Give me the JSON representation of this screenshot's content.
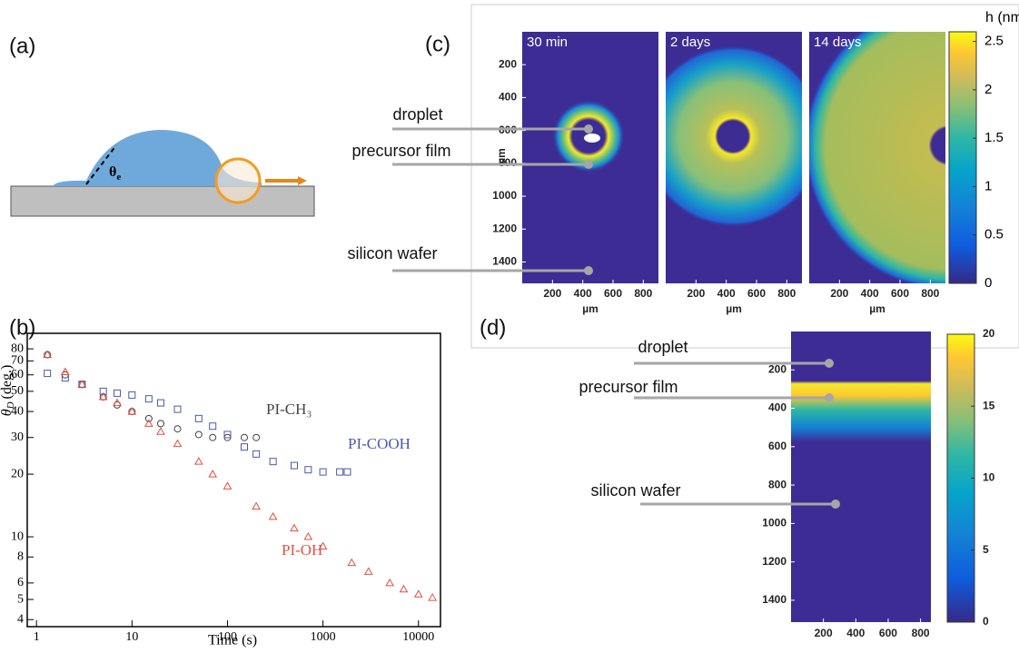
{
  "panel_labels": [
    "(a)",
    "(b)",
    "(c)",
    "(d)"
  ],
  "panel_a": {
    "angle_label": "θ",
    "angle_subscript": "e"
  },
  "panel_b": {
    "type": "line",
    "x_label": "Time (s)",
    "y_label": "θ",
    "y_label_subscript": "D",
    "y_label_unit": "(deg.)",
    "xscale": "log",
    "yscale": "log",
    "xlim": [
      0.8,
      17000
    ],
    "ylim": [
      3.7,
      95
    ],
    "xticks": [
      1,
      10,
      100,
      1000,
      10000
    ],
    "yticks": [
      4,
      5,
      6,
      8,
      10,
      20,
      30,
      40,
      50,
      60,
      70,
      80
    ],
    "series": [
      {
        "name": "PI-CH₃",
        "color": "#444444",
        "marker": "circle",
        "x": [
          1.3,
          2,
          3,
          5,
          7,
          10,
          15,
          20,
          30,
          50,
          70,
          100,
          150,
          200
        ],
        "values": [
          75,
          60,
          54,
          47,
          43,
          40,
          37,
          35,
          33,
          31,
          30,
          30,
          30,
          30
        ]
      },
      {
        "name": "PI-COOH",
        "color": "#4a5aa8",
        "marker": "square",
        "x": [
          1.3,
          2,
          3,
          5,
          7,
          10,
          15,
          20,
          30,
          50,
          70,
          100,
          150,
          200,
          300,
          500,
          700,
          1000,
          1500,
          1800
        ],
        "values": [
          61,
          58,
          54,
          50,
          49,
          48,
          46,
          44,
          41,
          37,
          34,
          31,
          27,
          25,
          23,
          22,
          21,
          20.5,
          20.5,
          20.5
        ]
      },
      {
        "name": "PI-OH",
        "color": "#e0503f",
        "marker": "triangle",
        "x": [
          1.3,
          2,
          3,
          5,
          7,
          10,
          15,
          20,
          30,
          50,
          70,
          100,
          200,
          300,
          500,
          700,
          1000,
          2000,
          3000,
          5000,
          7000,
          10000,
          14000
        ],
        "values": [
          75,
          62,
          54,
          47,
          44,
          40,
          35,
          32,
          28,
          23,
          20,
          17.5,
          14,
          12.5,
          11,
          10,
          9,
          7.5,
          6.8,
          6,
          5.6,
          5.3,
          5.1
        ]
      }
    ]
  },
  "panel_c": {
    "times": [
      "30 min",
      "2 days",
      "14 days"
    ],
    "xlim": [
      0,
      900
    ],
    "ylim": [
      0,
      1530
    ],
    "xticks": [
      200,
      400,
      600,
      800
    ],
    "yticks": [
      200,
      400,
      600,
      800,
      1000,
      1200,
      1400
    ],
    "x_label": "µm",
    "y_label": "µm",
    "colorbar_label": "h (nm)",
    "colorbar_lim": [
      0,
      2.6
    ],
    "colorbar_ticks": [
      0,
      0.5,
      1,
      1.5,
      2,
      2.5
    ],
    "annotations": [
      "droplet",
      "precursor film",
      "silicon wafer"
    ]
  },
  "panel_d": {
    "xlim": [
      0,
      864
    ],
    "ylim": [
      0,
      1514
    ],
    "xticks": [
      200,
      400,
      600,
      800
    ],
    "yticks": [
      200,
      400,
      600,
      800,
      1000,
      1200,
      1400
    ],
    "colorbar_lim": [
      0,
      20
    ],
    "colorbar_ticks": [
      0,
      5,
      10,
      15,
      20
    ],
    "annotations": [
      "droplet",
      "precursor film",
      "silicon wafer"
    ]
  }
}
